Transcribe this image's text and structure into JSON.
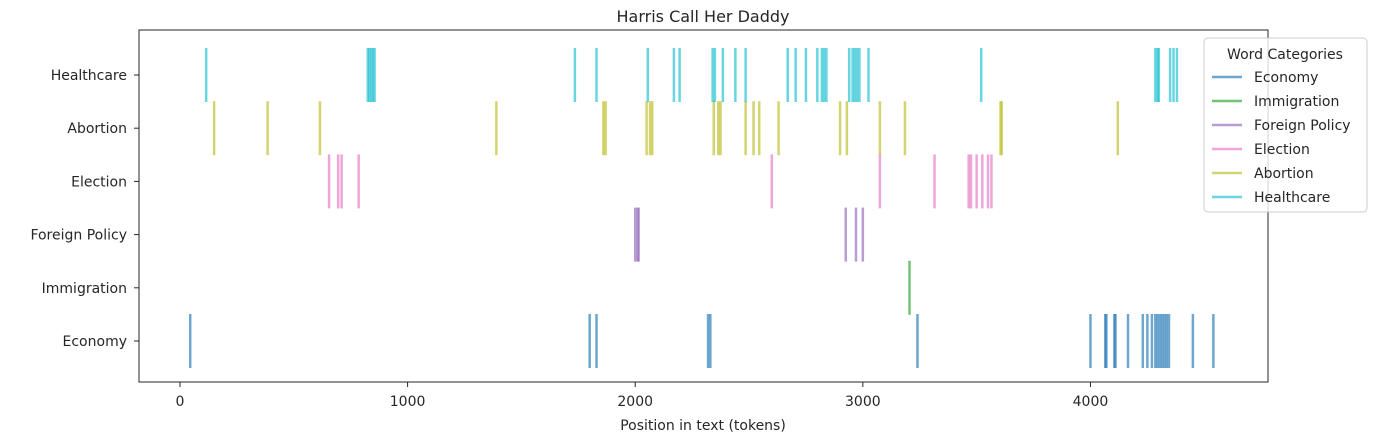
{
  "chart_data": {
    "type": "scatter",
    "title": "Harris Call Her Daddy",
    "xlabel": "Position in text (tokens)",
    "ylabel": "",
    "xlim": [
      -180,
      4780
    ],
    "xticks": [
      0,
      1000,
      2000,
      3000,
      4000
    ],
    "categories": [
      "Economy",
      "Immigration",
      "Foreign Policy",
      "Election",
      "Abortion",
      "Healthcare"
    ],
    "legend": {
      "title": "Word Categories",
      "placement": "top-right"
    },
    "series": [
      {
        "name": "Economy",
        "color": "#1f77b4",
        "x": [
          45,
          1800,
          1830,
          2320,
          2330,
          3240,
          4000,
          4065,
          4070,
          4105,
          4110,
          4165,
          4230,
          4250,
          4270,
          4285,
          4295,
          4305,
          4315,
          4325,
          4335,
          4345,
          4450,
          4540
        ]
      },
      {
        "name": "Immigration",
        "color": "#2ca02c",
        "x": [
          3205
        ]
      },
      {
        "name": "Foreign Policy",
        "color": "#9467bd",
        "x": [
          2000,
          2010,
          2015,
          2925,
          2970,
          3000
        ]
      },
      {
        "name": "Election",
        "color": "#e377c2",
        "x": [
          655,
          695,
          710,
          785,
          2600,
          3075,
          3315,
          3465,
          3475,
          3500,
          3525,
          3550,
          3565
        ]
      },
      {
        "name": "Abortion",
        "color": "#bcbd22",
        "x": [
          150,
          385,
          615,
          1390,
          1860,
          1870,
          2050,
          2065,
          2075,
          2345,
          2365,
          2375,
          2485,
          2520,
          2545,
          2630,
          2900,
          2930,
          3075,
          3185,
          3605,
          3610,
          4120
        ]
      },
      {
        "name": "Healthcare",
        "color": "#17becf",
        "x": [
          115,
          825,
          832,
          840,
          848,
          855,
          1735,
          1830,
          2055,
          2170,
          2195,
          2340,
          2350,
          2385,
          2440,
          2485,
          2670,
          2705,
          2750,
          2800,
          2820,
          2830,
          2840,
          2940,
          2955,
          2965,
          2975,
          2985,
          3025,
          3520,
          4285,
          4295,
          4300,
          4350,
          4365,
          4380
        ]
      }
    ]
  }
}
